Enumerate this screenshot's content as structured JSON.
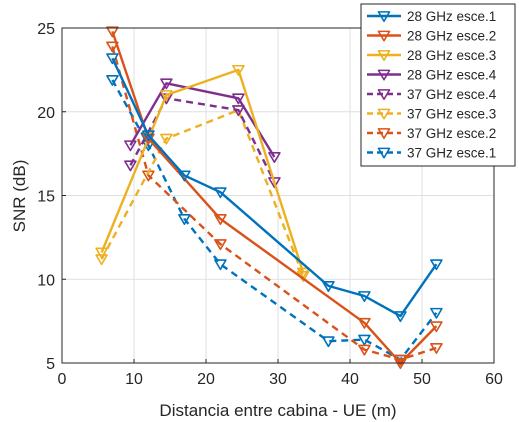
{
  "chart_data": {
    "type": "line",
    "title": "",
    "xlabel": "Distancia entre cabina - UE (m)",
    "ylabel": "SNR (dB)",
    "xlim": [
      0,
      60
    ],
    "ylim": [
      5,
      25
    ],
    "xticks": [
      "0",
      "10",
      "20",
      "30",
      "40",
      "50",
      "60"
    ],
    "yticks": [
      "5",
      "10",
      "15",
      "20",
      "25"
    ],
    "grid": true,
    "legend_position": "top-right",
    "series": [
      {
        "name": "28 GHz esce.1",
        "color": "#0072BD",
        "style": "solid",
        "x": [
          7,
          12,
          17,
          22,
          37,
          42,
          47,
          52
        ],
        "y": [
          23.2,
          18.6,
          16.2,
          15.2,
          9.6,
          9.0,
          7.8,
          10.9
        ]
      },
      {
        "name": "28 GHz esce.2",
        "color": "#D95319",
        "style": "solid",
        "x": [
          7,
          12,
          22,
          42,
          47,
          52
        ],
        "y": [
          24.8,
          18.4,
          13.6,
          7.4,
          5.0,
          7.2
        ]
      },
      {
        "name": "28 GHz esce.3",
        "color": "#EDB120",
        "style": "solid",
        "x": [
          5.5,
          14.5,
          24.5,
          33.5
        ],
        "y": [
          11.6,
          21.0,
          22.5,
          10.4
        ]
      },
      {
        "name": "28 GHz esce.4",
        "color": "#7E2F8E",
        "style": "solid",
        "x": [
          9.5,
          14.5,
          24.5,
          29.5
        ],
        "y": [
          18.0,
          21.7,
          20.8,
          17.3
        ]
      },
      {
        "name": "37 GHz esce.4",
        "color": "#7E2F8E",
        "style": "dashed",
        "x": [
          9.5,
          14.5,
          24.5,
          29.5
        ],
        "y": [
          16.8,
          20.8,
          20.1,
          15.8
        ]
      },
      {
        "name": "37 GHz esce.3",
        "color": "#EDB120",
        "style": "dashed",
        "x": [
          5.5,
          14.5,
          24.5,
          33.5
        ],
        "y": [
          11.2,
          18.4,
          20.1,
          10.2
        ]
      },
      {
        "name": "37 GHz esce.2",
        "color": "#D95319",
        "style": "dashed",
        "x": [
          7,
          12,
          22,
          42,
          47,
          52
        ],
        "y": [
          23.9,
          16.2,
          12.1,
          5.8,
          5.2,
          5.9
        ]
      },
      {
        "name": "37 GHz esce.1",
        "color": "#0072BD",
        "style": "dashed",
        "x": [
          7,
          12,
          17,
          22,
          37,
          42,
          47,
          52
        ],
        "y": [
          21.9,
          18.0,
          13.6,
          10.9,
          6.3,
          6.4,
          5.2,
          8.0
        ]
      }
    ]
  }
}
